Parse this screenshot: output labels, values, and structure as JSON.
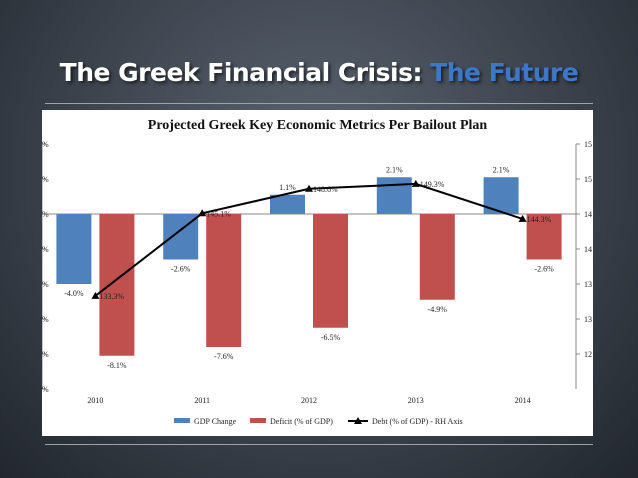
{
  "slide": {
    "title_main": "The Greek Financial Crisis: ",
    "title_accent": "The Future",
    "accent_color": "#3d78c8"
  },
  "chart_data": {
    "type": "bar",
    "title": "Projected Greek Key Economic Metrics Per Bailout Plan",
    "categories": [
      "2010",
      "2011",
      "2012",
      "2013",
      "2014"
    ],
    "series": [
      {
        "name": "GDP Change",
        "kind": "bar",
        "axis": "left",
        "color": "#4f81bd",
        "values": [
          -4.0,
          -2.6,
          1.1,
          2.1,
          2.1
        ],
        "labels": [
          "-4.0%",
          "-2.6%",
          "1.1%",
          "2.1%",
          "2.1%"
        ]
      },
      {
        "name": "Deficit (% of GDP)",
        "kind": "bar",
        "axis": "left",
        "color": "#c0504d",
        "values": [
          -8.1,
          -7.6,
          -6.5,
          -4.9,
          -2.6
        ],
        "labels": [
          "-8.1%",
          "-7.6%",
          "-6.5%",
          "-4.9%",
          "-2.6%"
        ]
      },
      {
        "name": "Debt (% of GDP) - RH Axis",
        "kind": "line",
        "axis": "right",
        "color": "#000000",
        "values": [
          133.3,
          145.1,
          148.6,
          149.3,
          144.3
        ],
        "labels": [
          "133.3%",
          "145.1%",
          "148.6%",
          "149.3%",
          "144.3%"
        ]
      }
    ],
    "left_axis": {
      "range": [
        -10,
        4
      ],
      "tick_labels": [
        "%",
        "%",
        "%",
        "%",
        "%",
        "%",
        "%",
        "%"
      ]
    },
    "right_axis": {
      "range": [
        120,
        155
      ],
      "tick_labels": [
        "15",
        "15",
        "14",
        "14",
        "13",
        "13",
        "12"
      ]
    },
    "legend": "bottom",
    "grid": false
  }
}
